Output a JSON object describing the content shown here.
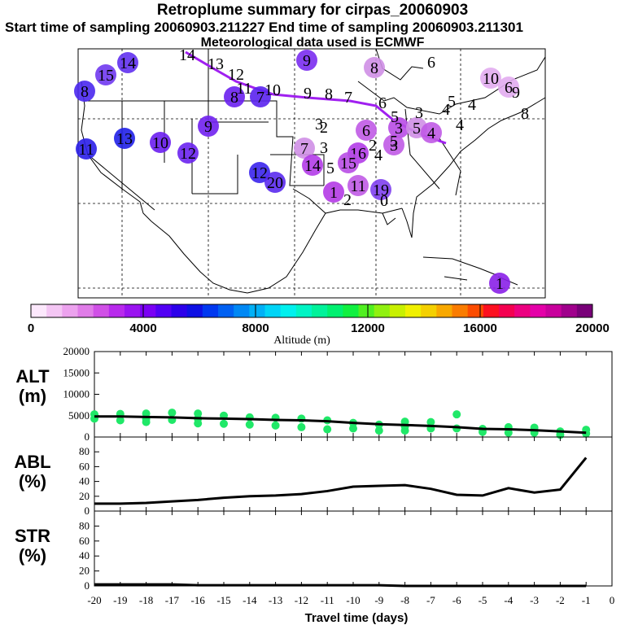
{
  "header": {
    "title": "Retroplume summary for cirpas_20060903",
    "sampling": "Start time of sampling 20060903.211227     End time of sampling 20060903.211301",
    "met": "Meteorological data used is ECMWF"
  },
  "colorbar": {
    "label": "Altitude (m)",
    "ticks": [
      "0",
      "4000",
      "8000",
      "12000",
      "16000",
      "20000"
    ],
    "stops": [
      "#fce8fc",
      "#f4c6f4",
      "#eca2ee",
      "#e07ce8",
      "#d050e6",
      "#b82aec",
      "#9a14f0",
      "#7a00f4",
      "#5200f4",
      "#2c00ea",
      "#0e10e4",
      "#0038f0",
      "#0060f2",
      "#0088f4",
      "#00b0f6",
      "#00d4f6",
      "#00f0ee",
      "#00f4c4",
      "#00f29a",
      "#00f070",
      "#10f040",
      "#50f020",
      "#90f010",
      "#c8f000",
      "#f0f000",
      "#f4d000",
      "#f8a800",
      "#fa7c00",
      "#fc4c00",
      "#fc1020",
      "#f40050",
      "#ec0080",
      "#e400a8",
      "#c8009c",
      "#a0008c",
      "#780078"
    ]
  },
  "map": {
    "bg": "#ffffff",
    "track_color": "#a020f0",
    "markers": [
      {
        "label": "14",
        "x": 157,
        "y": 77,
        "color": "#6030f0"
      },
      {
        "label": "15",
        "x": 130,
        "y": 92,
        "color": "#7038f0"
      },
      {
        "label": "8",
        "x": 104,
        "y": 112,
        "color": "#4a28ee"
      },
      {
        "label": "13",
        "x": 153,
        "y": 170,
        "color": "#2020e8"
      },
      {
        "label": "11",
        "x": 106,
        "y": 183,
        "color": "#2a1ee8"
      },
      {
        "label": "10",
        "x": 197,
        "y": 175,
        "color": "#6a1ef0"
      },
      {
        "label": "12",
        "x": 231,
        "y": 188,
        "color": "#6a22f0"
      },
      {
        "label": "9",
        "x": 256,
        "y": 155,
        "color": "#7020f0"
      },
      {
        "label": "8",
        "x": 288,
        "y": 119,
        "color": "#6a20f0"
      },
      {
        "label": "7",
        "x": 320,
        "y": 119,
        "color": "#5a22ee"
      },
      {
        "label": "12",
        "x": 319,
        "y": 212,
        "color": "#3a24ec"
      },
      {
        "label": "20",
        "x": 338,
        "y": 224,
        "color": "#5a2aee"
      },
      {
        "label": "9",
        "x": 377,
        "y": 74,
        "color": "#7a2cf0"
      },
      {
        "label": "8",
        "x": 460,
        "y": 83,
        "color": "#cf8fe6"
      },
      {
        "label": "7",
        "x": 374,
        "y": 182,
        "color": "#cf8fe6"
      },
      {
        "label": "14",
        "x": 384,
        "y": 203,
        "color": "#b33ce8"
      },
      {
        "label": "16",
        "x": 440,
        "y": 188,
        "color": "#b33ce8"
      },
      {
        "label": "15",
        "x": 428,
        "y": 200,
        "color": "#b84ce6"
      },
      {
        "label": "1",
        "x": 410,
        "y": 236,
        "color": "#b43ae6"
      },
      {
        "label": "11",
        "x": 440,
        "y": 228,
        "color": "#c05ae6"
      },
      {
        "label": "19",
        "x": 468,
        "y": 233,
        "color": "#8040f0"
      },
      {
        "label": "6",
        "x": 450,
        "y": 160,
        "color": "#c05ae6"
      },
      {
        "label": "3",
        "x": 490,
        "y": 157,
        "color": "#b84ce6"
      },
      {
        "label": "3",
        "x": 484,
        "y": 178,
        "color": "#c05ae6"
      },
      {
        "label": "5",
        "x": 512,
        "y": 157,
        "color": "#cf8fe6"
      },
      {
        "label": "4",
        "x": 530,
        "y": 163,
        "color": "#c05ae6"
      },
      {
        "label": "10",
        "x": 603,
        "y": 96,
        "color": "#e2acf0"
      },
      {
        "label": "6",
        "x": 625,
        "y": 107,
        "color": "#e2acf0"
      },
      {
        "label": "1",
        "x": 614,
        "y": 348,
        "color": "#8a20e8"
      }
    ],
    "labels": [
      {
        "text": "14",
        "x": 230,
        "y": 74
      },
      {
        "text": "13",
        "x": 265,
        "y": 85
      },
      {
        "text": "12",
        "x": 290,
        "y": 98
      },
      {
        "text": "11",
        "x": 300,
        "y": 115
      },
      {
        "text": "10",
        "x": 335,
        "y": 117
      },
      {
        "text": "9",
        "x": 378,
        "y": 121
      },
      {
        "text": "8",
        "x": 404,
        "y": 122
      },
      {
        "text": "7",
        "x": 428,
        "y": 126
      },
      {
        "text": "6",
        "x": 470,
        "y": 133
      },
      {
        "text": "5",
        "x": 485,
        "y": 150
      },
      {
        "text": "4",
        "x": 548,
        "y": 141
      },
      {
        "text": "5",
        "x": 555,
        "y": 131
      },
      {
        "text": "4",
        "x": 580,
        "y": 135
      },
      {
        "text": "4",
        "x": 565,
        "y": 160
      },
      {
        "text": "2",
        "x": 398,
        "y": 163
      },
      {
        "text": "3",
        "x": 392,
        "y": 159
      },
      {
        "text": "3",
        "x": 398,
        "y": 188
      },
      {
        "text": "5",
        "x": 406,
        "y": 213
      },
      {
        "text": "2",
        "x": 458,
        "y": 185
      },
      {
        "text": "4",
        "x": 465,
        "y": 197
      },
      {
        "text": "5",
        "x": 484,
        "y": 180
      },
      {
        "text": "8",
        "x": 645,
        "y": 146
      },
      {
        "text": "9",
        "x": 634,
        "y": 120
      },
      {
        "text": "0",
        "x": 472,
        "y": 253
      },
      {
        "text": "3",
        "x": 515,
        "y": 145
      },
      {
        "text": "2",
        "x": 427,
        "y": 252
      },
      {
        "text": "6",
        "x": 530,
        "y": 83
      }
    ]
  },
  "chart_data": [
    {
      "type": "scatter",
      "ylabel": "ALT\n(m)",
      "ylim": [
        0,
        20000
      ],
      "yticks": [
        "0",
        "5000",
        "10000",
        "15000",
        "20000"
      ],
      "xlim": [
        -20,
        0
      ],
      "series": [
        {
          "name": "mean altitude",
          "x": [
            -20,
            -19,
            -18,
            -17,
            -16,
            -15,
            -14,
            -13,
            -12,
            -11,
            -10,
            -9,
            -8,
            -7,
            -6,
            -5,
            -4,
            -3,
            -2,
            -1
          ],
          "values": [
            4800,
            4800,
            4700,
            4600,
            4400,
            4300,
            4200,
            4000,
            3900,
            3700,
            3300,
            3000,
            2800,
            2600,
            2300,
            1900,
            1800,
            1600,
            1300,
            1000
          ]
        },
        {
          "name": "particles",
          "x": [
            -20,
            -20,
            -19,
            -19,
            -18,
            -18,
            -18,
            -17,
            -17,
            -16,
            -16,
            -16,
            -15,
            -15,
            -14,
            -14,
            -13,
            -13,
            -12,
            -12,
            -11,
            -11,
            -10,
            -10,
            -9,
            -9,
            -8,
            -8,
            -8,
            -7,
            -7,
            -6,
            -6,
            -5,
            -5,
            -4,
            -4,
            -3,
            -3,
            -2,
            -2,
            -1,
            -1
          ],
          "values": [
            5300,
            4300,
            5400,
            3900,
            5500,
            4200,
            3500,
            5700,
            4000,
            5500,
            3200,
            4300,
            5000,
            3100,
            4600,
            2900,
            4500,
            2700,
            4300,
            2300,
            3900,
            1800,
            3300,
            2000,
            2900,
            1500,
            3600,
            2500,
            1500,
            3500,
            2000,
            2000,
            5300,
            1200,
            1900,
            1000,
            2300,
            1000,
            2200,
            500,
            1300,
            800,
            1700
          ]
        }
      ]
    },
    {
      "type": "line",
      "ylabel": "ABL\n(%)",
      "ylim": [
        0,
        100
      ],
      "yticks": [
        "0",
        "20",
        "40",
        "60",
        "80"
      ],
      "xlim": [
        -20,
        0
      ],
      "x": [
        -20,
        -19,
        -18,
        -17,
        -16,
        -15,
        -14,
        -13,
        -12,
        -11,
        -10,
        -9,
        -8,
        -7,
        -6,
        -5,
        -4,
        -3,
        -2,
        -1
      ],
      "values": [
        10,
        10,
        11,
        13,
        15,
        18,
        20,
        21,
        23,
        27,
        33,
        34,
        35,
        30,
        22,
        21,
        31,
        25,
        29,
        72
      ]
    },
    {
      "type": "line",
      "ylabel": "STR\n(%)",
      "ylim": [
        0,
        100
      ],
      "yticks": [
        "0",
        "20",
        "40",
        "60",
        "80"
      ],
      "xlim": [
        -20,
        0
      ],
      "x": [
        -20,
        -19,
        -18,
        -17,
        -16,
        -15,
        -14,
        -13,
        -12,
        -11,
        -10,
        -9,
        -8,
        -7,
        -6,
        -5,
        -4,
        -3,
        -2,
        -1
      ],
      "values": [
        2,
        2,
        2,
        2,
        1,
        1,
        1,
        1,
        1,
        1,
        1,
        1,
        0,
        0,
        0,
        0,
        0,
        0,
        0,
        0
      ],
      "xlabel": "Travel time (days)",
      "xticks": [
        "-20",
        "-19",
        "-18",
        "-17",
        "-16",
        "-15",
        "-14",
        "-13",
        "-12",
        "-11",
        "-10",
        "-9",
        "-8",
        "-7",
        "-6",
        "-5",
        "-4",
        "-3",
        "-2",
        "-1",
        "0"
      ]
    }
  ]
}
